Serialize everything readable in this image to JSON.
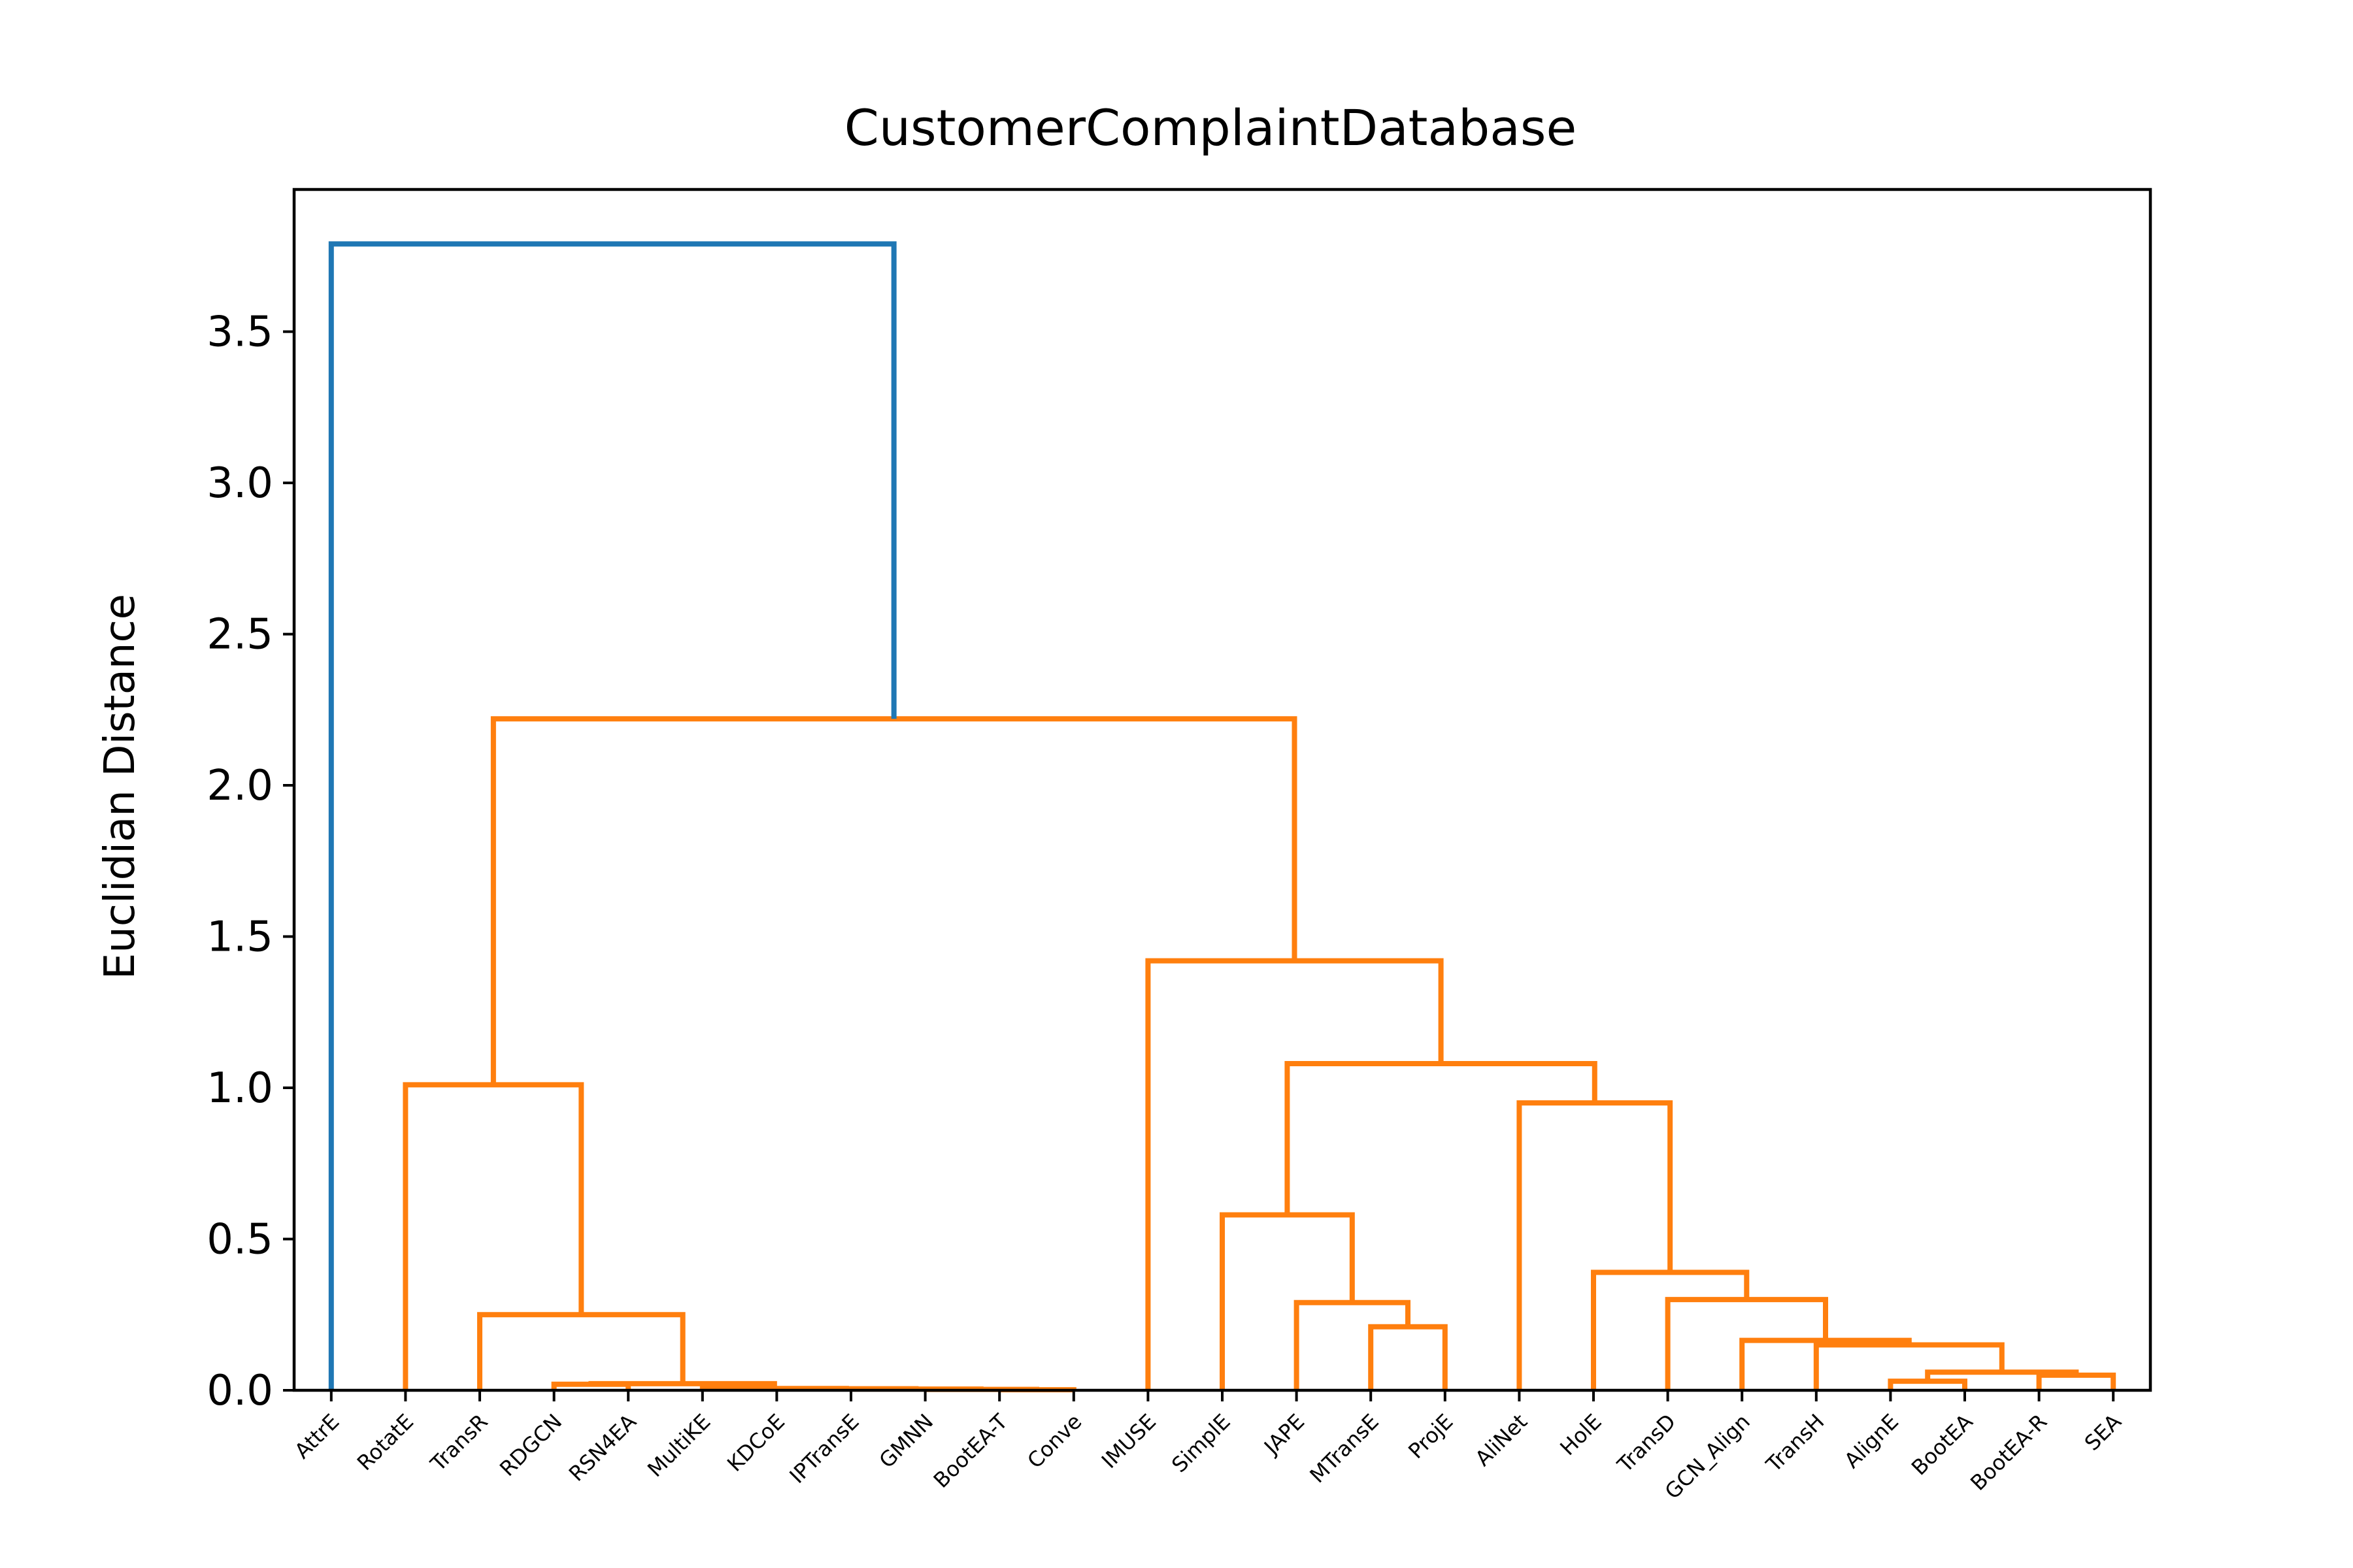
{
  "chart_data": {
    "type": "dendrogram",
    "title": "CustomerComplaintDatabase",
    "xlabel": "",
    "ylabel": "Euclidian Distance",
    "ylim": [
      0,
      3.97
    ],
    "yticks": [
      "0.0",
      "0.5",
      "1.0",
      "1.5",
      "2.0",
      "2.5",
      "3.0",
      "3.5"
    ],
    "grid": false,
    "leaves": [
      "AttrE",
      "RotatE",
      "TransR",
      "RDGCN",
      "RSN4EA",
      "MultiKE",
      "KDCoE",
      "IPTransE",
      "GMNN",
      "BootEA-T",
      "Conve",
      "IMUSE",
      "SimplE",
      "JAPE",
      "MTransE",
      "ProjE",
      "AliNet",
      "HolE",
      "TransD",
      "GCN_Align",
      "TransH",
      "AlignE",
      "BootEA",
      "BootEA-R",
      "SEA"
    ],
    "colors": {
      "root": "#1f77b4",
      "cluster": "#ff7f0e"
    },
    "merges": [
      {
        "id": "n1",
        "left": "BootEA-T",
        "right": "Conve",
        "height": 0.002,
        "color": "cluster"
      },
      {
        "id": "n2",
        "left": "GMNN",
        "right": "n1",
        "height": 0.003,
        "color": "cluster"
      },
      {
        "id": "n3",
        "left": "IPTransE",
        "right": "n2",
        "height": 0.004,
        "color": "cluster"
      },
      {
        "id": "n4",
        "left": "KDCoE",
        "right": "n3",
        "height": 0.005,
        "color": "cluster"
      },
      {
        "id": "n5",
        "left": "MultiKE",
        "right": "n4",
        "height": 0.006,
        "color": "cluster"
      },
      {
        "id": "n6",
        "left": "RDGCN",
        "right": "RSN4EA",
        "height": 0.02,
        "color": "cluster"
      },
      {
        "id": "n7",
        "left": "n6",
        "right": "n5",
        "height": 0.022,
        "color": "cluster"
      },
      {
        "id": "n8",
        "left": "TransR",
        "right": "n7",
        "height": 0.25,
        "color": "cluster"
      },
      {
        "id": "n9",
        "left": "RotatE",
        "right": "n8",
        "height": 1.01,
        "color": "cluster"
      },
      {
        "id": "n10",
        "left": "MTransE",
        "right": "ProjE",
        "height": 0.21,
        "color": "cluster"
      },
      {
        "id": "n11",
        "left": "JAPE",
        "right": "n10",
        "height": 0.29,
        "color": "cluster"
      },
      {
        "id": "n12",
        "left": "SimplE",
        "right": "n11",
        "height": 0.58,
        "color": "cluster"
      },
      {
        "id": "n13",
        "left": "AlignE",
        "right": "BootEA",
        "height": 0.03,
        "color": "cluster"
      },
      {
        "id": "n14",
        "left": "BootEA-R",
        "right": "SEA",
        "height": 0.05,
        "color": "cluster"
      },
      {
        "id": "n15",
        "left": "n13",
        "right": "n14",
        "height": 0.06,
        "color": "cluster"
      },
      {
        "id": "n16",
        "left": "TransH",
        "right": "n15",
        "height": 0.15,
        "color": "cluster"
      },
      {
        "id": "n17",
        "left": "GCN_Align",
        "right": "n16",
        "height": 0.165,
        "color": "cluster"
      },
      {
        "id": "n18",
        "left": "TransD",
        "right": "n17",
        "height": 0.3,
        "color": "cluster"
      },
      {
        "id": "n19",
        "left": "HolE",
        "right": "n18",
        "height": 0.39,
        "color": "cluster"
      },
      {
        "id": "n20",
        "left": "AliNet",
        "right": "n19",
        "height": 0.95,
        "color": "cluster"
      },
      {
        "id": "n21",
        "left": "n12",
        "right": "n20",
        "height": 1.08,
        "color": "cluster"
      },
      {
        "id": "n22",
        "left": "IMUSE",
        "right": "n21",
        "height": 1.42,
        "color": "cluster"
      },
      {
        "id": "n23",
        "left": "n9",
        "right": "n22",
        "height": 2.22,
        "color": "cluster"
      },
      {
        "id": "n24",
        "left": "AttrE",
        "right": "n23",
        "height": 3.79,
        "color": "root"
      }
    ]
  }
}
